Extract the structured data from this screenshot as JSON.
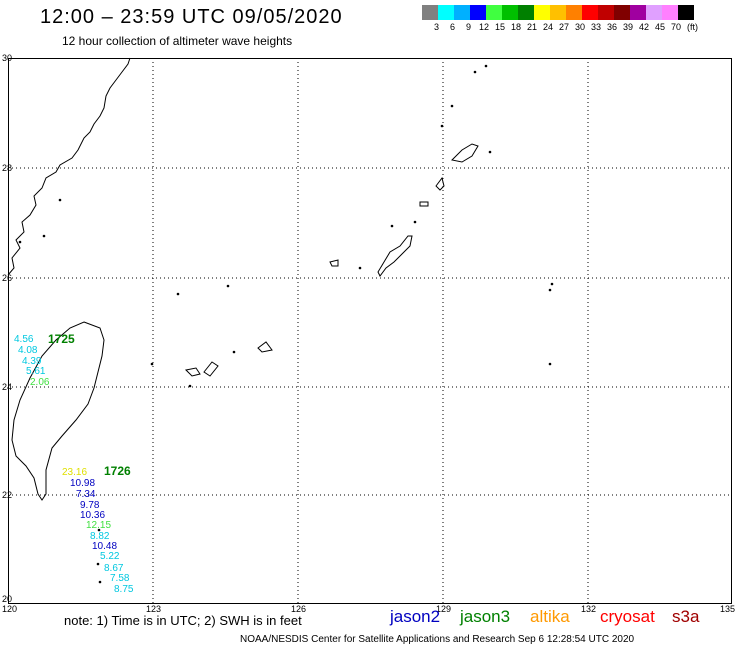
{
  "header": {
    "title": "12:00 – 23:59 UTC 09/05/2020",
    "subtitle": "12 hour collection of altimeter wave heights"
  },
  "legend": {
    "unit": "(ft)",
    "ticks": [
      "3",
      "6",
      "9",
      "12",
      "15",
      "18",
      "21",
      "24",
      "27",
      "30",
      "33",
      "36",
      "39",
      "42",
      "45",
      "70"
    ],
    "colors": [
      "#808080",
      "#00ffff",
      "#00b0ff",
      "#0000ff",
      "#40ff40",
      "#00c000",
      "#008000",
      "#ffff00",
      "#ffc000",
      "#ff8000",
      "#ff0000",
      "#c00000",
      "#800000",
      "#a000a0",
      "#e0a0ff",
      "#ff80ff",
      "#000000"
    ]
  },
  "axes": {
    "x_ticks": [
      "120",
      "123",
      "126",
      "129",
      "132",
      "135"
    ],
    "y_ticks": [
      "30",
      "28",
      "26",
      "24",
      "22",
      "20"
    ]
  },
  "observations": {
    "group1": [
      "4.56",
      "4.08",
      "4.39",
      "5.61",
      "2.06"
    ],
    "group1_time": "1725",
    "group2": [
      "23.16",
      "10.98",
      "7.34",
      "9.78",
      "10.36",
      "12.15",
      "8.82",
      "10.48",
      "5.22",
      "8.67",
      "7.58",
      "8.75"
    ],
    "group2_time": "1726"
  },
  "footer": {
    "note": "note: 1) Time is in UTC; 2) SWH is in feet",
    "credit": "NOAA/NESDIS Center for Satellite Applications and Research    Sep  6 12:28:54 UTC 2020",
    "satellites": [
      {
        "name": "jason2",
        "color": "#0000c0"
      },
      {
        "name": "jason3",
        "color": "#008000"
      },
      {
        "name": "altika",
        "color": "#ff9900"
      },
      {
        "name": "cryosat",
        "color": "#ff0000"
      },
      {
        "name": "s3a",
        "color": "#a00000"
      }
    ]
  }
}
